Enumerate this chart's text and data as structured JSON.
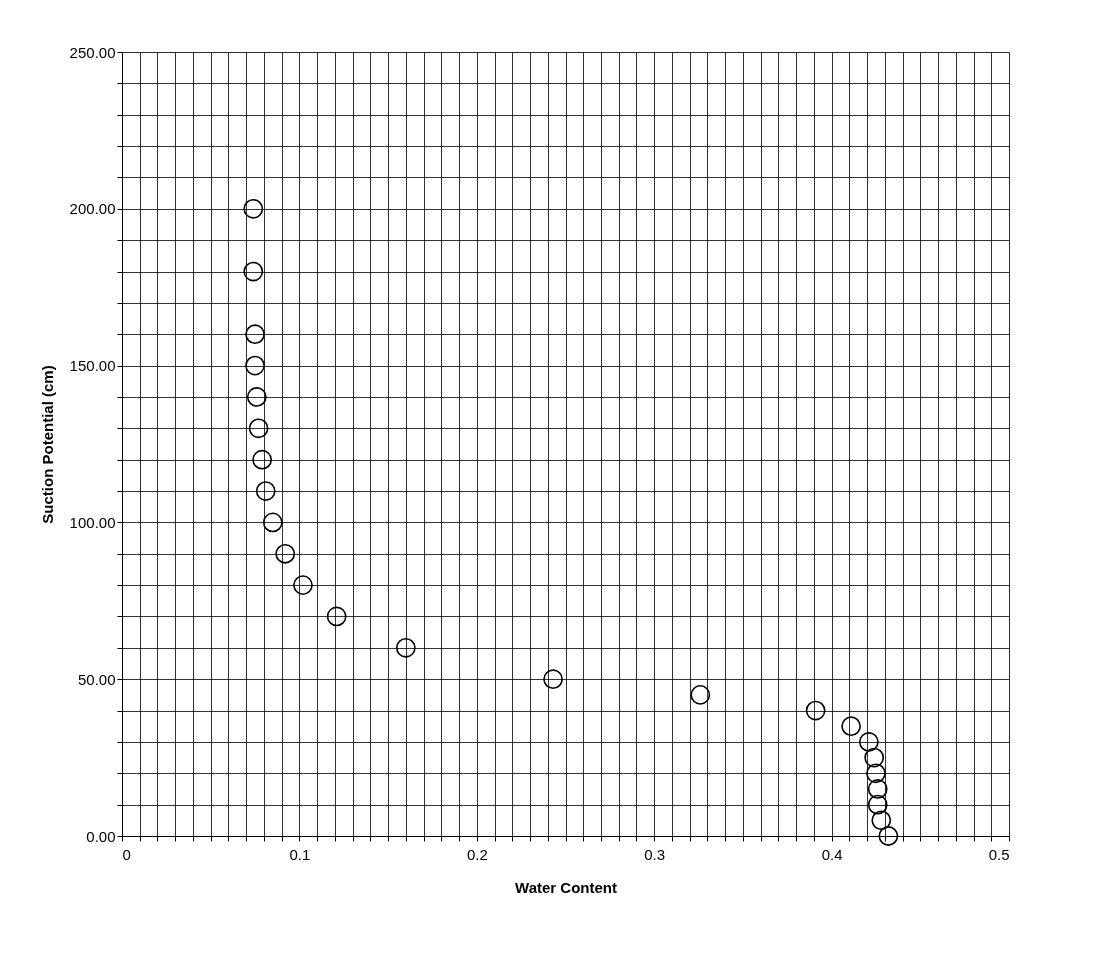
{
  "chart_data": {
    "type": "scatter",
    "xlabel": "Water Content",
    "ylabel": "Suction Potential (cm)",
    "x": [
      0.074,
      0.074,
      0.075,
      0.075,
      0.076,
      0.077,
      0.079,
      0.081,
      0.085,
      0.092,
      0.102,
      0.121,
      0.16,
      0.243,
      0.326,
      0.391,
      0.411,
      0.421,
      0.424,
      0.425,
      0.426,
      0.426,
      0.428,
      0.432
    ],
    "series": [
      {
        "color": "#000000",
        "values": [
          200,
          180,
          160,
          150,
          140,
          130,
          120,
          110,
          100,
          90,
          80,
          70,
          60,
          50,
          45,
          40,
          35,
          30,
          25,
          20,
          15,
          10,
          5,
          0
        ]
      }
    ],
    "marker": "circle",
    "grid": true,
    "legend": false,
    "xlim": [
      0,
      0.5
    ],
    "ylim": [
      0,
      250
    ],
    "xticks": [
      0,
      {
        "value": 0.01,
        "label": null
      },
      {
        "value": 0.02,
        "label": null
      },
      {
        "value": 0.03,
        "label": null
      },
      {
        "value": 0.04,
        "label": null
      },
      {
        "value": 0.05,
        "label": null
      },
      {
        "value": 0.06,
        "label": null
      },
      {
        "value": 0.07,
        "label": null
      },
      {
        "value": 0.08,
        "label": null
      },
      {
        "value": 0.09,
        "label": null
      },
      0.1,
      {
        "value": 0.11,
        "label": null
      },
      {
        "value": 0.12,
        "label": null
      },
      {
        "value": 0.13,
        "label": null
      },
      {
        "value": 0.14,
        "label": null
      },
      {
        "value": 0.15,
        "label": null
      },
      {
        "value": 0.16,
        "label": null
      },
      {
        "value": 0.17,
        "label": null
      },
      {
        "value": 0.18,
        "label": null
      },
      {
        "value": 0.19,
        "label": null
      },
      0.2,
      {
        "value": 0.21,
        "label": null
      },
      {
        "value": 0.22,
        "label": null
      },
      {
        "value": 0.23,
        "label": null
      },
      {
        "value": 0.24,
        "label": null
      },
      {
        "value": 0.25,
        "label": null
      },
      {
        "value": 0.26,
        "label": null
      },
      {
        "value": 0.27,
        "label": null
      },
      {
        "value": 0.28,
        "label": null
      },
      {
        "value": 0.29,
        "label": null
      },
      0.3,
      {
        "value": 0.31,
        "label": null
      },
      {
        "value": 0.32,
        "label": null
      },
      {
        "value": 0.33,
        "label": null
      },
      {
        "value": 0.34,
        "label": null
      },
      {
        "value": 0.35,
        "label": null
      },
      {
        "value": 0.36,
        "label": null
      },
      {
        "value": 0.37,
        "label": null
      },
      {
        "value": 0.38,
        "label": null
      },
      {
        "value": 0.39,
        "label": null
      },
      0.4,
      {
        "value": 0.41,
        "label": null
      },
      {
        "value": 0.42,
        "label": null
      },
      {
        "value": 0.43,
        "label": null
      },
      {
        "value": 0.44,
        "label": null
      },
      {
        "value": 0.45,
        "label": null
      },
      {
        "value": 0.46,
        "label": null
      },
      {
        "value": 0.47,
        "label": null
      },
      {
        "value": 0.48,
        "label": null
      },
      {
        "value": 0.49,
        "label": null
      },
      0.5
    ],
    "yticks": [
      {
        "value": 0,
        "label": "0.00"
      },
      {
        "value": 10,
        "label": null
      },
      {
        "value": 20,
        "label": null
      },
      {
        "value": 30,
        "label": null
      },
      {
        "value": 40,
        "label": null
      },
      {
        "value": 50,
        "label": "50.00"
      },
      {
        "value": 60,
        "label": null
      },
      {
        "value": 70,
        "label": null
      },
      {
        "value": 80,
        "label": null
      },
      {
        "value": 90,
        "label": null
      },
      {
        "value": 100,
        "label": "100.00"
      },
      {
        "value": 110,
        "label": null
      },
      {
        "value": 120,
        "label": null
      },
      {
        "value": 130,
        "label": null
      },
      {
        "value": 140,
        "label": null
      },
      {
        "value": 150,
        "label": "150.00"
      },
      {
        "value": 160,
        "label": null
      },
      {
        "value": 170,
        "label": null
      },
      {
        "value": 180,
        "label": null
      },
      {
        "value": 190,
        "label": null
      },
      {
        "value": 200,
        "label": "200.00"
      },
      {
        "value": 210,
        "label": null
      },
      {
        "value": 220,
        "label": null
      },
      {
        "value": 230,
        "label": null
      },
      {
        "value": 240,
        "label": null
      },
      {
        "value": 250,
        "label": "250.00"
      }
    ]
  }
}
